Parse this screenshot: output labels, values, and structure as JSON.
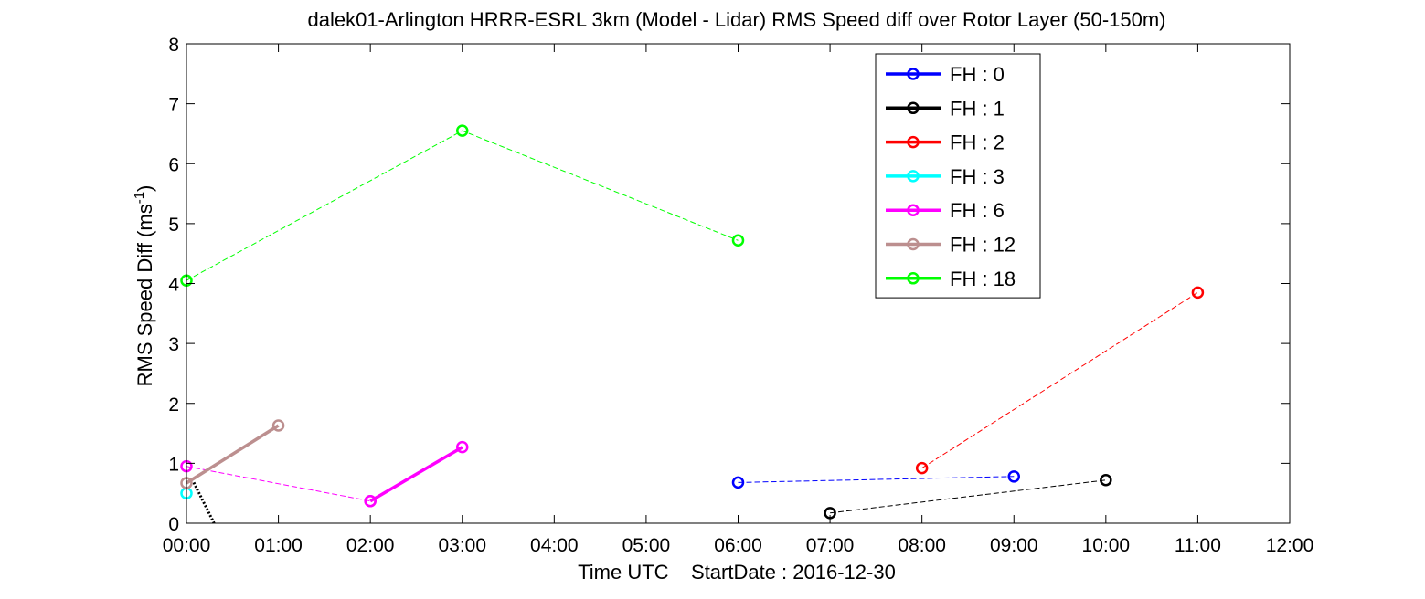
{
  "chart_data": {
    "type": "line",
    "title": "dalek01-Arlington HRRR-ESRL 3km (Model - Lidar) RMS Speed diff over Rotor Layer (50-150m)",
    "xlabel": "Time UTC    StartDate : 2016-12-30",
    "ylabel": {
      "text": "RMS Speed Diff (ms",
      "sup": "-1",
      "suffix": ")"
    },
    "xlim": [
      0,
      12
    ],
    "ylim": [
      0,
      8
    ],
    "x_ticks": [
      0,
      1,
      2,
      3,
      4,
      5,
      6,
      7,
      8,
      9,
      10,
      11,
      12
    ],
    "x_tick_labels": [
      "00:00",
      "01:00",
      "02:00",
      "03:00",
      "04:00",
      "05:00",
      "06:00",
      "07:00",
      "08:00",
      "09:00",
      "10:00",
      "11:00",
      "12:00"
    ],
    "y_ticks": [
      0,
      1,
      2,
      3,
      4,
      5,
      6,
      7,
      8
    ],
    "y_tick_labels": [
      "0",
      "1",
      "2",
      "3",
      "4",
      "5",
      "6",
      "7",
      "8"
    ],
    "grid": false,
    "legend_position": "top-right",
    "series": [
      {
        "name": "FH : 0",
        "color": "#0000ff",
        "segments": [
          {
            "style": "dashed",
            "points": [
              [
                6,
                0.68
              ],
              [
                9,
                0.78
              ]
            ]
          }
        ]
      },
      {
        "name": "FH : 1",
        "color": "#000000",
        "segments": [
          {
            "style": "dotted",
            "points": [
              [
                0.08,
                0.68
              ],
              [
                0.3,
                0
              ]
            ]
          },
          {
            "style": "dashed",
            "points": [
              [
                7,
                0.17
              ],
              [
                10,
                0.72
              ]
            ]
          }
        ]
      },
      {
        "name": "FH : 2",
        "color": "#ff0000",
        "segments": [
          {
            "style": "dashed",
            "points": [
              [
                8,
                0.92
              ],
              [
                11,
                3.85
              ]
            ]
          }
        ]
      },
      {
        "name": "FH : 3",
        "color": "#00ffff",
        "segments": [
          {
            "style": "marker",
            "points": [
              [
                0,
                0.5
              ]
            ]
          }
        ]
      },
      {
        "name": "FH : 6",
        "color": "#ff00ff",
        "segments": [
          {
            "style": "dashed",
            "points": [
              [
                0,
                0.95
              ],
              [
                2,
                0.37
              ]
            ]
          },
          {
            "style": "solid",
            "points": [
              [
                2,
                0.37
              ],
              [
                3,
                1.27
              ]
            ]
          }
        ]
      },
      {
        "name": "FH : 12",
        "color": "#bc8f8f",
        "segments": [
          {
            "style": "solid",
            "points": [
              [
                0,
                0.67
              ],
              [
                1,
                1.63
              ]
            ]
          }
        ]
      },
      {
        "name": "FH : 18",
        "color": "#00ff00",
        "segments": [
          {
            "style": "dashed",
            "points": [
              [
                0,
                4.05
              ],
              [
                3,
                6.55
              ],
              [
                6,
                4.72
              ]
            ]
          }
        ]
      }
    ]
  }
}
